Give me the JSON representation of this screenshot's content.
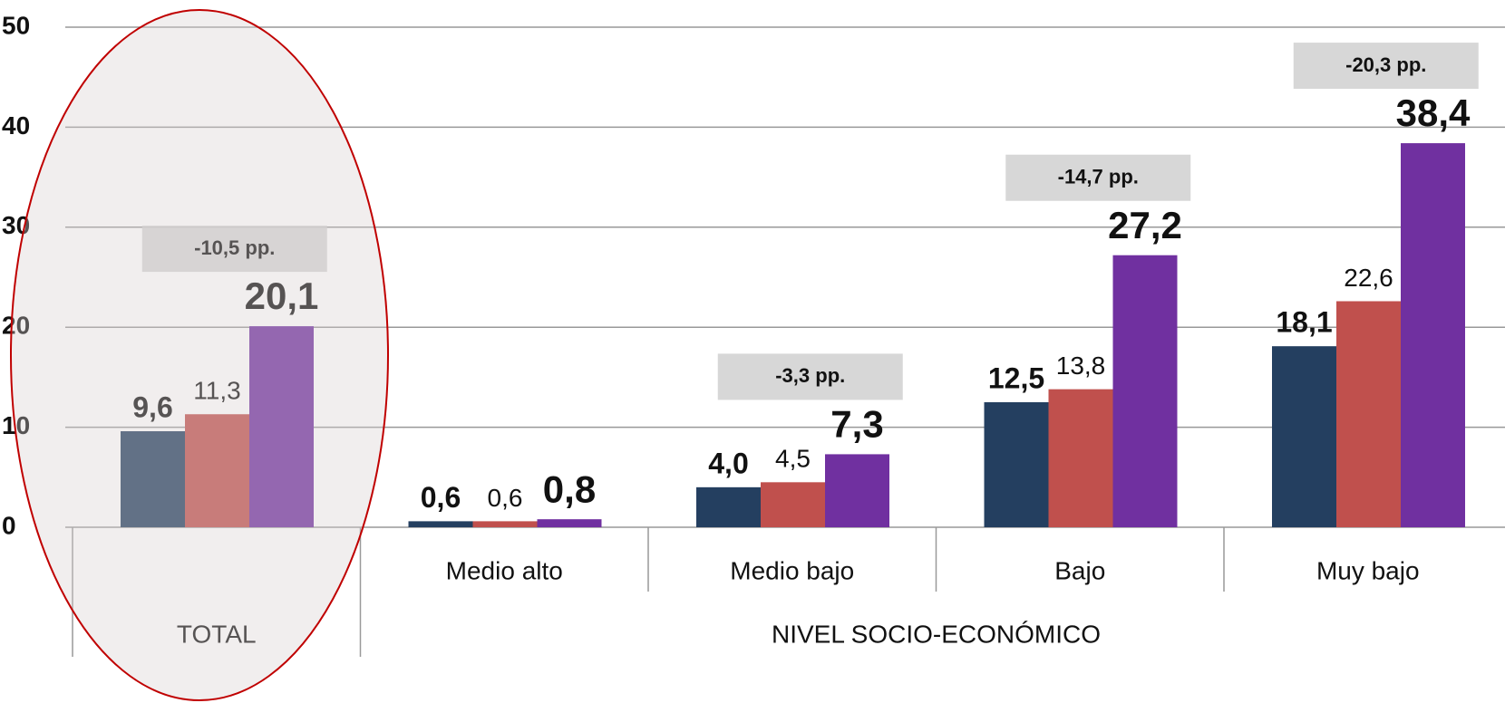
{
  "chart_data": {
    "type": "bar",
    "categories": [
      "TOTAL",
      "Medio alto",
      "Medio bajo",
      "Bajo",
      "Muy bajo"
    ],
    "group_label": "NIVEL SOCIO-ECONÓMICO",
    "series": [
      {
        "color": "#243f60",
        "values": [
          9.6,
          0.6,
          4.0,
          12.5,
          18.1
        ],
        "value_labels": [
          "9,6",
          "0,6",
          "4,0",
          "12,5",
          "18,1"
        ]
      },
      {
        "color": "#c0504d",
        "values": [
          11.3,
          0.6,
          4.5,
          13.8,
          22.6
        ],
        "value_labels": [
          "11,3",
          "0,6",
          "4,5",
          "13,8",
          "22,6"
        ]
      },
      {
        "color": "#7030a0",
        "values": [
          20.1,
          0.8,
          7.3,
          27.2,
          38.4
        ],
        "value_labels": [
          "20,1",
          "0,8",
          "7,3",
          "27,2",
          "38,4"
        ]
      }
    ],
    "annotations": [
      "-10,5 pp.",
      null,
      "-3,3 pp.",
      "-14,7 pp.",
      "-20,3 pp."
    ],
    "ylim": [
      0,
      50
    ],
    "yticks": [
      0,
      10,
      20,
      30,
      40,
      50
    ],
    "grid": true
  }
}
